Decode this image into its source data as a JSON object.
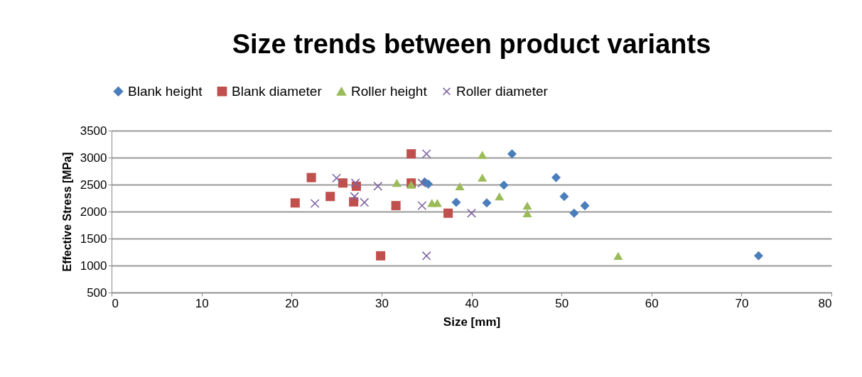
{
  "chart_data": {
    "type": "scatter",
    "title": "Size trends between product variants",
    "xlabel": "Size [mm]",
    "ylabel": "Effective Stress [MPa]",
    "xlim": [
      0,
      80
    ],
    "xticks": [
      0,
      10,
      20,
      30,
      40,
      50,
      60,
      70,
      80
    ],
    "ylim": [
      500,
      3500
    ],
    "yticks": [
      500,
      1000,
      1500,
      2000,
      2500,
      3000,
      3500
    ],
    "grid": "y",
    "legend": "top",
    "series": [
      {
        "name": "Blank height",
        "color": "#4a7ebb",
        "marker": "diamond",
        "x": [
          34.8,
          35.2,
          43.6,
          44.5,
          49.4,
          50.3,
          51.4,
          52.6,
          38.3,
          41.7,
          71.9
        ],
        "values": [
          2550,
          2510,
          2490,
          3070,
          2630,
          2280,
          1970,
          2110,
          2170,
          2160,
          1180
        ]
      },
      {
        "name": "Blank diameter",
        "color": "#c0504d",
        "marker": "square",
        "x": [
          20.4,
          22.2,
          24.3,
          25.7,
          26.9,
          27.2,
          31.6,
          29.9,
          33.3,
          33.3,
          37.4
        ],
        "values": [
          2160,
          2630,
          2280,
          2530,
          2180,
          2470,
          2110,
          1180,
          3070,
          2530,
          1970
        ]
      },
      {
        "name": "Roller height",
        "color": "#9bbb59",
        "marker": "triangle",
        "x": [
          31.7,
          33.3,
          35.6,
          36.2,
          38.7,
          41.2,
          41.2,
          43.1,
          46.2,
          46.2,
          56.3
        ],
        "values": [
          2530,
          2500,
          2160,
          2160,
          2470,
          3050,
          2630,
          2280,
          2110,
          1970,
          1180
        ]
      },
      {
        "name": "Roller diameter",
        "color": "#8064a2",
        "marker": "cross",
        "x": [
          22.6,
          25.0,
          27.1,
          27.0,
          28.1,
          29.6,
          34.5,
          34.5,
          35.0,
          35.0,
          40.0
        ],
        "values": [
          2150,
          2620,
          2530,
          2280,
          2170,
          2470,
          2110,
          2530,
          3070,
          1180,
          1970
        ]
      }
    ]
  }
}
